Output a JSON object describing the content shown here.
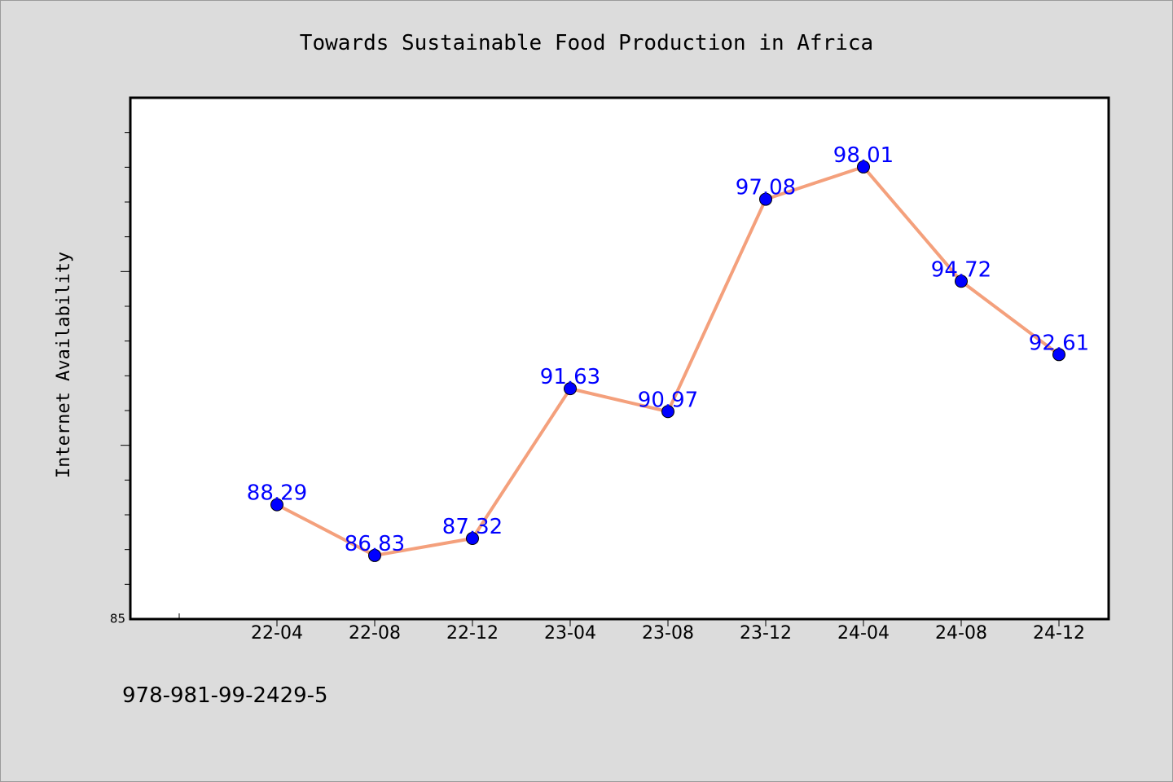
{
  "chart_data": {
    "type": "line",
    "title": "Towards Sustainable Food Production in Africa",
    "ylabel": "Internet Availability",
    "xlabel": "",
    "categories": [
      "22-04",
      "22-08",
      "22-12",
      "23-04",
      "23-08",
      "23-12",
      "24-04",
      "24-08",
      "24-12"
    ],
    "series": [
      {
        "values": [
          88.29,
          86.83,
          87.32,
          91.63,
          90.97,
          97.08,
          98.01,
          94.72,
          92.61
        ],
        "labels": [
          "88.29",
          "86.83",
          "87.32",
          "91.63",
          "90.97",
          "97.08",
          "98.01",
          "94.72",
          "92.61"
        ],
        "line_color": "#f4a07c",
        "marker_color": "#0000ff"
      }
    ],
    "ylim": [
      85,
      100
    ],
    "y_tick_labels": [
      {
        "value": 85,
        "label": "85"
      }
    ],
    "grid": false,
    "legend": "none"
  },
  "footer": {
    "isbn": "978-981-99-2429-5"
  }
}
